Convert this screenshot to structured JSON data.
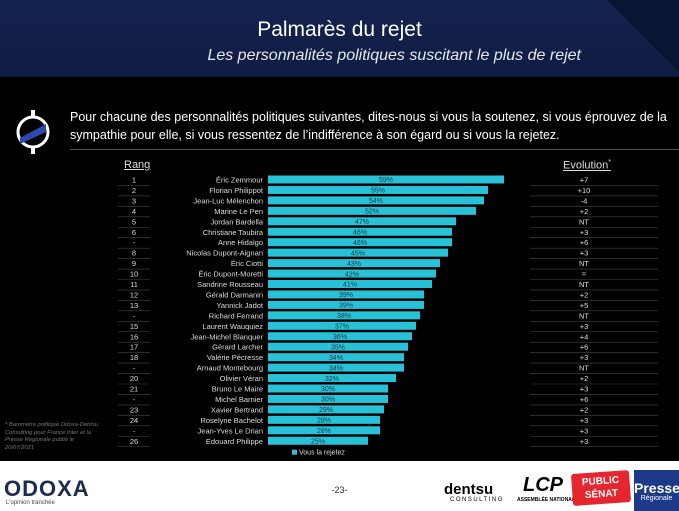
{
  "header": {
    "title": "Palmarès du rejet",
    "subtitle": "Les personnalités politiques suscitant le plus de rejet"
  },
  "question": "Pour chacune des personnalités politiques suivantes, dites-nous si vous la soutenez, si vous éprouvez de la sympathie pour elle, si vous ressentez de l’indifférence à son égard ou si vous la rejetez.",
  "columns": {
    "rang": "Rang",
    "evolution": "Evolution",
    "evolution_mark": "*"
  },
  "footnote": "* Baromètre politique Odoxa-Dentsu Consulting pour France Inter et la Presse Régionale publié le 20/07/2021",
  "footer": {
    "brand": "ODOXA",
    "tagline": "L'opinion tranchée",
    "page": "-23-",
    "dentsu": "dentsu",
    "dentsu_sub": "CONSULTING",
    "lcp": "LCP",
    "lcp_sub": "ASSEMBLÉE NATIONALE",
    "ps_line1": "PUBLIC",
    "ps_line2": "SÉNAT",
    "presse_line1": "Presse",
    "presse_line2": "Régionale"
  },
  "colors": {
    "bar": "#27c2d8",
    "header": "#15234f"
  },
  "chart_data": {
    "type": "bar",
    "orientation": "horizontal",
    "title": "Palmarès du rejet",
    "legend": [
      "Vous la rejetez"
    ],
    "xlim": [
      0,
      100
    ],
    "ranks": [
      "1",
      "2",
      "3",
      "4",
      "5",
      "6",
      "-",
      "8",
      "9",
      "10",
      "11",
      "12",
      "13",
      "-",
      "15",
      "16",
      "17",
      "18",
      "-",
      "20",
      "21",
      "-",
      "23",
      "24",
      "-",
      "26"
    ],
    "categories": [
      "Éric Zemmour",
      "Florian Philippot",
      "Jean-Luc Mélenchon",
      "Marine Le Pen",
      "Jordan Bardella",
      "Christiane Taubira",
      "Anne Hidalgo",
      "Nicolas Dupont-Aignan",
      "Éric Ciotti",
      "Éric Dupont-Moretti",
      "Sandrine Rousseau",
      "Gérald Darmanin",
      "Yannick Jadot",
      "Richard Ferrand",
      "Laurent Wauquiez",
      "Jean-Michel Blanquer",
      "Gérard Larcher",
      "Valérie Pécresse",
      "Arnaud Montebourg",
      "Olivier Véran",
      "Bruno Le Maire",
      "Michel Barnier",
      "Xavier Bertrand",
      "Roselyne Bachelot",
      "Jean-Yves Le Drian",
      "Edouard Philippe"
    ],
    "values": [
      59,
      55,
      54,
      52,
      47,
      46,
      46,
      45,
      43,
      42,
      41,
      39,
      39,
      38,
      37,
      36,
      35,
      34,
      34,
      32,
      30,
      30,
      29,
      28,
      28,
      25
    ],
    "value_labels": [
      "59%",
      "55%",
      "54%",
      "52%",
      "47%",
      "46%",
      "46%",
      "45%",
      "43%",
      "42%",
      "41%",
      "39%",
      "39%",
      "38%",
      "37%",
      "36%",
      "35%",
      "34%",
      "34%",
      "32%",
      "30%",
      "30%",
      "29%",
      "28%",
      "28%",
      "25%"
    ],
    "evolution": [
      "+7",
      "+10",
      "-4",
      "+2",
      "NT",
      "+3",
      "+6",
      "+3",
      "NT",
      "=",
      "NT",
      "+2",
      "+5",
      "NT",
      "+3",
      "+4",
      "+6",
      "+3",
      "NT",
      "+2",
      "+3",
      "+6",
      "+2",
      "+3",
      "+3",
      "+3"
    ]
  }
}
